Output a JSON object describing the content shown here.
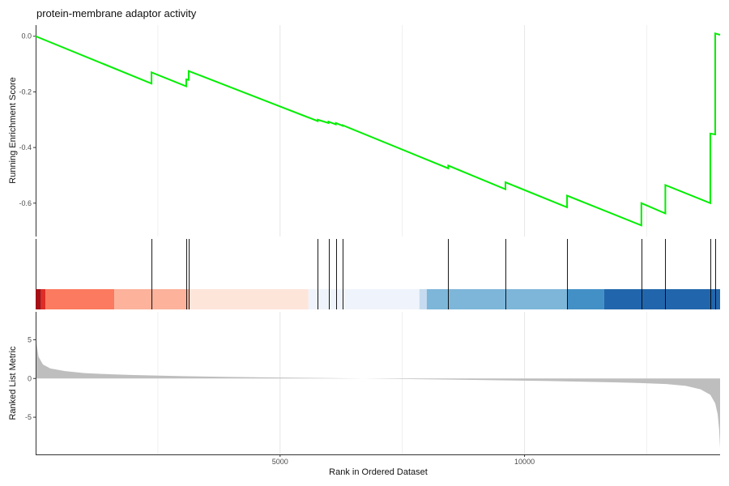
{
  "chart_data": {
    "type": "line",
    "title": "protein-membrane adaptor activity",
    "xlabel": "Rank in Ordered Dataset",
    "x_ticks": [
      5000,
      10000
    ],
    "xlim": [
      0,
      14000
    ],
    "panels": {
      "enrichment": {
        "ylabel": "Running Enrichment Score",
        "ylim": [
          -0.72,
          0.04
        ],
        "y_ticks": [
          0.0,
          -0.2,
          -0.4,
          -0.6
        ],
        "y_tick_labels": [
          "0.0",
          "-0.2",
          "-0.4",
          "-0.6"
        ],
        "line_color": "#00ee00",
        "points": [
          [
            0,
            0.0
          ],
          [
            2370,
            -0.17
          ],
          [
            2370,
            -0.13
          ],
          [
            3080,
            -0.18
          ],
          [
            3080,
            -0.155
          ],
          [
            3130,
            -0.157
          ],
          [
            3130,
            -0.125
          ],
          [
            5770,
            -0.305
          ],
          [
            5770,
            -0.3
          ],
          [
            5990,
            -0.312
          ],
          [
            5990,
            -0.307
          ],
          [
            6140,
            -0.317
          ],
          [
            6140,
            -0.312
          ],
          [
            6280,
            -0.322
          ],
          [
            6280,
            -0.32
          ],
          [
            8440,
            -0.475
          ],
          [
            8440,
            -0.465
          ],
          [
            9610,
            -0.55
          ],
          [
            9610,
            -0.525
          ],
          [
            10870,
            -0.615
          ],
          [
            10870,
            -0.573
          ],
          [
            12390,
            -0.68
          ],
          [
            12390,
            -0.6
          ],
          [
            12880,
            -0.637
          ],
          [
            12880,
            -0.535
          ],
          [
            13800,
            -0.6
          ],
          [
            13800,
            -0.35
          ],
          [
            13900,
            -0.353
          ],
          [
            13900,
            0.01
          ],
          [
            14000,
            0.005
          ]
        ]
      },
      "hits": {
        "positions": [
          2370,
          3080,
          3130,
          5770,
          5990,
          6140,
          6280,
          8440,
          9610,
          10870,
          12390,
          12880,
          13800,
          13900
        ],
        "color_bands": [
          {
            "from": 0,
            "to": 110,
            "color": "#a50f15"
          },
          {
            "from": 110,
            "to": 200,
            "color": "#de2d26"
          },
          {
            "from": 200,
            "to": 1610,
            "color": "#fc7a5f"
          },
          {
            "from": 1610,
            "to": 3130,
            "color": "#fcb29b"
          },
          {
            "from": 3130,
            "to": 5580,
            "color": "#fee5da"
          },
          {
            "from": 5580,
            "to": 7850,
            "color": "#eff3fb"
          },
          {
            "from": 7850,
            "to": 8000,
            "color": "#c6dbef"
          },
          {
            "from": 8000,
            "to": 10870,
            "color": "#7db6d9"
          },
          {
            "from": 10870,
            "to": 11630,
            "color": "#4390c6"
          },
          {
            "from": 11630,
            "to": 14000,
            "color": "#2166ac"
          }
        ]
      },
      "ranked_metric": {
        "ylabel": "Ranked List Metric",
        "ylim": [
          -9.8,
          8.6
        ],
        "y_ticks": [
          5,
          0,
          -5
        ],
        "y_tick_labels": [
          "5",
          "0",
          "-5"
        ],
        "fill_color": "#bebebe",
        "points": [
          [
            0,
            8.0
          ],
          [
            20,
            4.5
          ],
          [
            60,
            2.8
          ],
          [
            150,
            1.8
          ],
          [
            300,
            1.3
          ],
          [
            600,
            0.95
          ],
          [
            1000,
            0.7
          ],
          [
            1500,
            0.55
          ],
          [
            2000,
            0.45
          ],
          [
            3000,
            0.3
          ],
          [
            4000,
            0.2
          ],
          [
            5000,
            0.12
          ],
          [
            6000,
            0.05
          ],
          [
            6700,
            0.0
          ],
          [
            7500,
            -0.06
          ],
          [
            8500,
            -0.14
          ],
          [
            9500,
            -0.23
          ],
          [
            10500,
            -0.33
          ],
          [
            11500,
            -0.45
          ],
          [
            12300,
            -0.57
          ],
          [
            12900,
            -0.72
          ],
          [
            13300,
            -0.95
          ],
          [
            13600,
            -1.4
          ],
          [
            13800,
            -2.1
          ],
          [
            13900,
            -3.2
          ],
          [
            13950,
            -4.6
          ],
          [
            13980,
            -6.5
          ],
          [
            14000,
            -9.0
          ]
        ]
      }
    },
    "grid": true
  }
}
